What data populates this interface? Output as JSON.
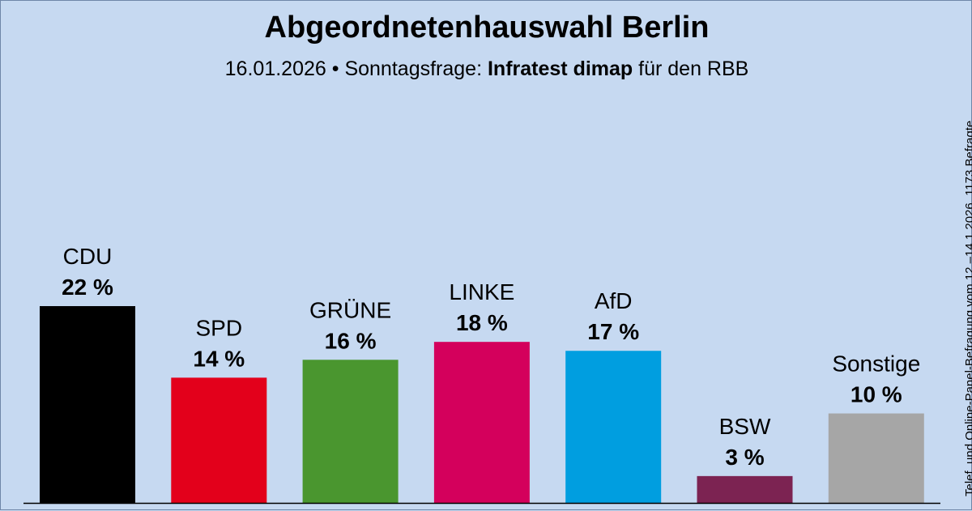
{
  "chart_data": {
    "type": "bar",
    "title": "Abgeordnetenhauswahl Berlin",
    "subtitle": {
      "date": "16.01.2026",
      "separator": "•",
      "question": "Sonntagsfrage:",
      "institute": "Infratest dimap",
      "suffix": "für den RBB"
    },
    "categories": [
      "CDU",
      "SPD",
      "GRÜNE",
      "LINKE",
      "AfD",
      "BSW",
      "Sonstige"
    ],
    "values": [
      22,
      14,
      16,
      18,
      17,
      3,
      10
    ],
    "value_labels": [
      "22 %",
      "14 %",
      "16 %",
      "18 %",
      "17 %",
      "3 %",
      "10 %"
    ],
    "colors": [
      "#000000",
      "#e3001b",
      "#4a962f",
      "#d4005c",
      "#009ee0",
      "#7c2352",
      "#a6a6a6"
    ],
    "ylim": [
      0,
      22
    ],
    "xlabel": "",
    "ylabel": "",
    "grid": false,
    "side_note": "Telef. und Online-Panel-Befragung vom 12.–14.1.2026, 1173 Befragte"
  }
}
